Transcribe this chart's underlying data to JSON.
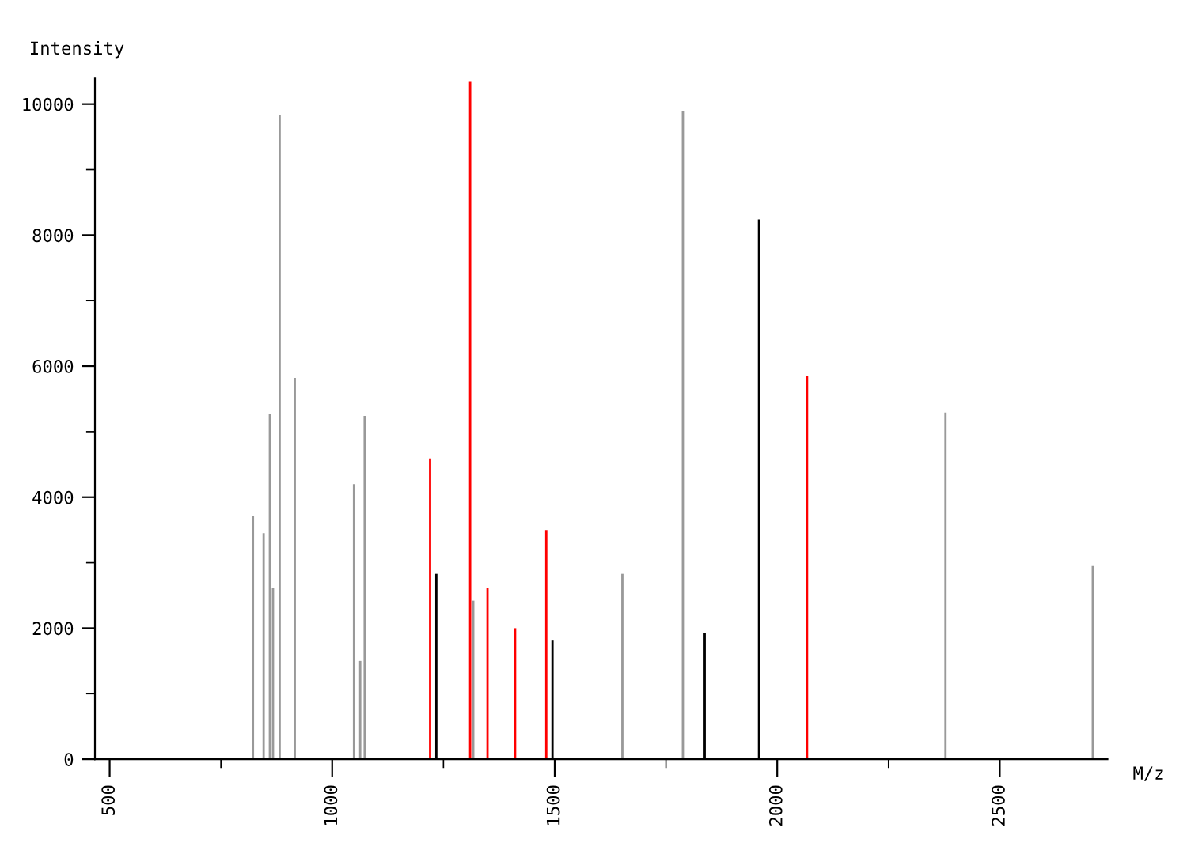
{
  "chart_data": {
    "type": "bar",
    "ylabel": "Intensity",
    "xlabel": "M/z",
    "x": [
      822,
      846,
      860,
      867,
      882,
      916,
      1049,
      1063,
      1073,
      1220,
      1234,
      1310,
      1317,
      1349,
      1411,
      1481,
      1495,
      1652,
      1788,
      1837,
      1959,
      2067,
      2378,
      2709
    ],
    "values": [
      3720,
      3450,
      5270,
      2610,
      9830,
      5820,
      4200,
      1500,
      5240,
      4590,
      2830,
      10340,
      2420,
      2610,
      2000,
      3500,
      1810,
      2830,
      9900,
      1930,
      8240,
      5850,
      5290,
      2950
    ],
    "colors": [
      "#999999",
      "#999999",
      "#999999",
      "#999999",
      "#999999",
      "#999999",
      "#999999",
      "#999999",
      "#999999",
      "#ff0000",
      "#000000",
      "#ff0000",
      "#999999",
      "#ff0000",
      "#ff0000",
      "#ff0000",
      "#000000",
      "#999999",
      "#999999",
      "#000000",
      "#000000",
      "#ff0000",
      "#999999",
      "#999999"
    ],
    "xlim": [
      467,
      2742
    ],
    "ylim": [
      0,
      10390
    ],
    "xticks": [
      500,
      {
        "value": 750,
        "label": null
      },
      1000,
      {
        "value": 1250,
        "label": null
      },
      1500,
      {
        "value": 1750,
        "label": null
      },
      2000,
      {
        "value": 2250,
        "label": null
      },
      2500
    ],
    "yticks": [
      0,
      {
        "value": 1000,
        "label": null
      },
      2000,
      {
        "value": 3000,
        "label": null
      },
      4000,
      {
        "value": 5000,
        "label": null
      },
      6000,
      {
        "value": 7000,
        "label": null
      },
      8000,
      {
        "value": 9000,
        "label": null
      },
      10000
    ],
    "grid": false,
    "legend": false
  }
}
